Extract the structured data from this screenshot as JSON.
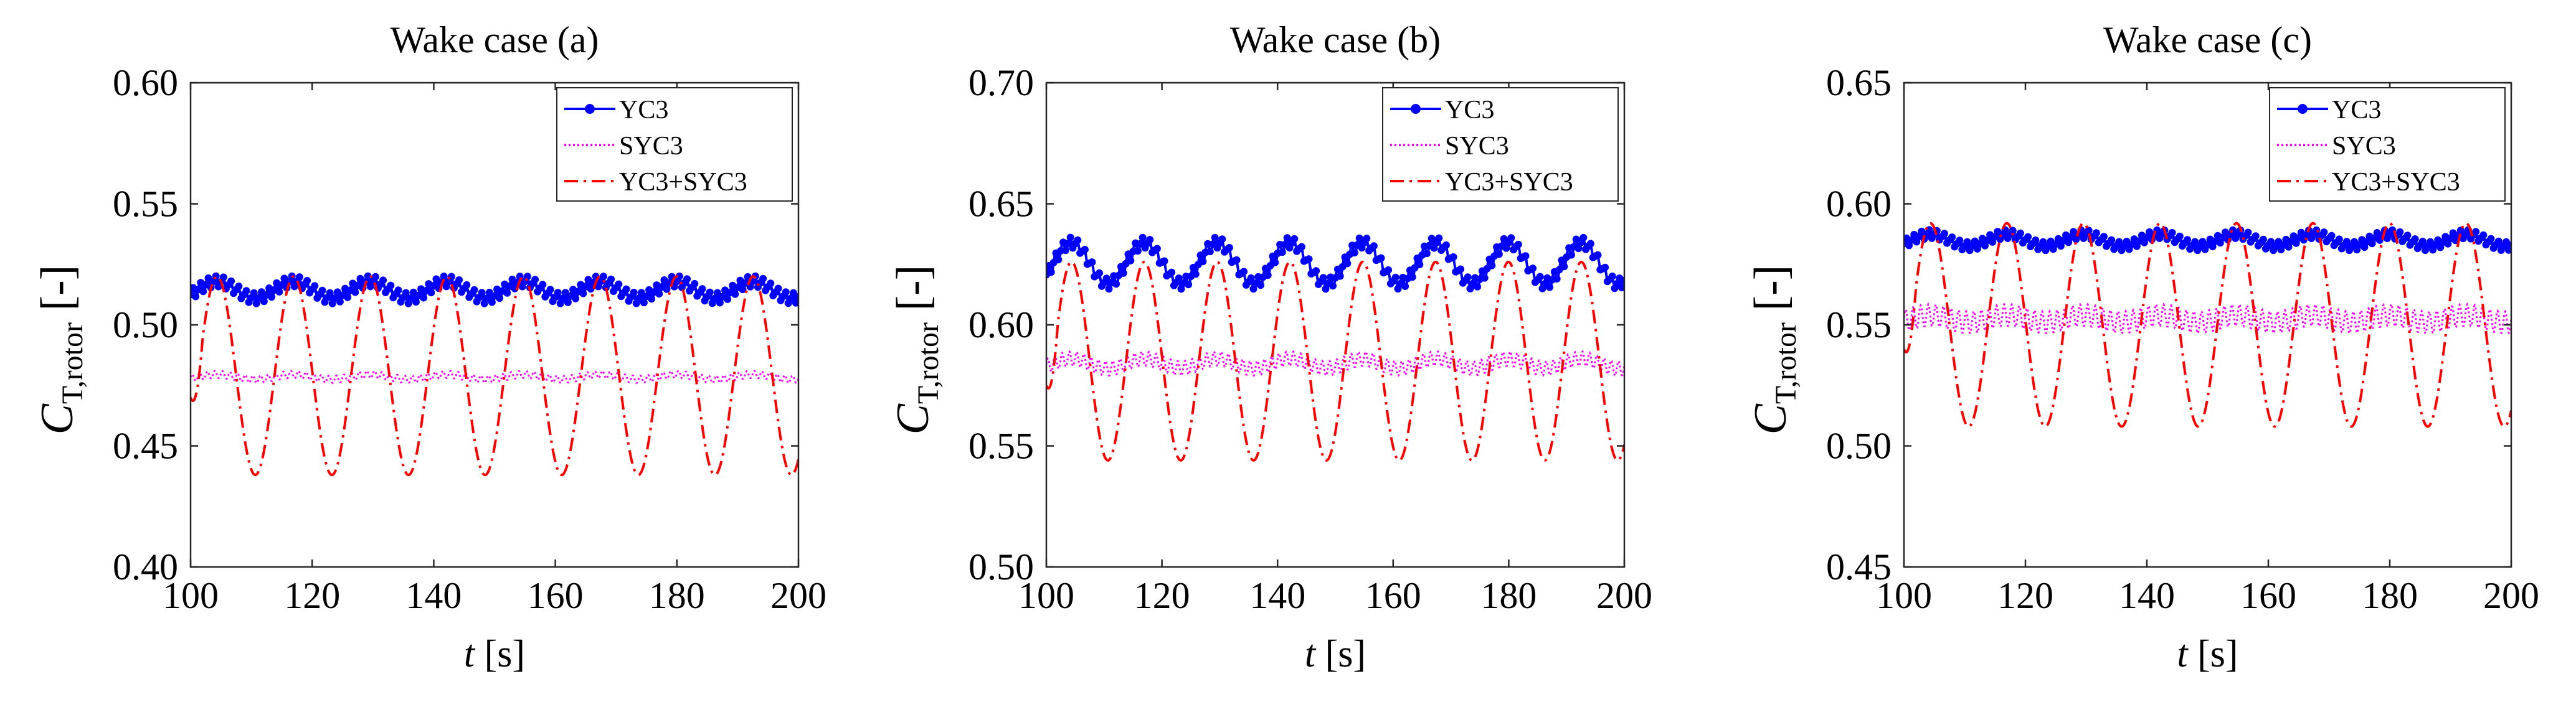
{
  "chart_data": [
    {
      "type": "line",
      "title": "Wake case (a)",
      "xlabel": "t [s]",
      "ylabel": "C_T,rotor [-]",
      "xlim": [
        100,
        200
      ],
      "ylim": [
        0.4,
        0.6
      ],
      "xticks": [
        "100",
        "120",
        "140",
        "160",
        "180",
        "200"
      ],
      "yticks": [
        "0.40",
        "0.45",
        "0.50",
        "0.55",
        "0.60"
      ],
      "legend_position": "top-right",
      "series": [
        {
          "name": "YC3",
          "color": "#0000ff",
          "style": "solid-dots",
          "mean": 0.5145,
          "amplitude": 0.0035,
          "period": 12.6,
          "ripple": 0.0025,
          "ripple_period": 1.25
        },
        {
          "name": "SYC3",
          "color": "#ff00ff",
          "style": "dotted",
          "mean": 0.4785,
          "amplitude": 0.001,
          "period": 12.6,
          "ripple": 0.0015,
          "ripple_period": 1.25
        },
        {
          "name": "YC3+SYC3",
          "color": "#ff0000",
          "style": "dash-dot",
          "mean": 0.479,
          "amplitude": 0.041,
          "period": 12.6,
          "ripple": 0.0,
          "ripple_period": 1.25,
          "x_start_value": 0.47
        }
      ]
    },
    {
      "type": "line",
      "title": "Wake case (b)",
      "xlabel": "t [s]",
      "ylabel": "C_T,rotor [-]",
      "xlim": [
        100,
        200
      ],
      "ylim": [
        0.5,
        0.7
      ],
      "xticks": [
        "100",
        "120",
        "140",
        "160",
        "180",
        "200"
      ],
      "yticks": [
        "0.50",
        "0.55",
        "0.60",
        "0.65",
        "0.70"
      ],
      "legend_position": "top-right",
      "series": [
        {
          "name": "YC3",
          "color": "#0000ff",
          "style": "solid-dots",
          "mean": 0.6255,
          "amplitude": 0.0085,
          "period": 12.6,
          "ripple": 0.0025,
          "ripple_period": 1.25
        },
        {
          "name": "SYC3",
          "color": "#ff00ff",
          "style": "dotted",
          "mean": 0.584,
          "amplitude": 0.002,
          "period": 12.6,
          "ripple": 0.003,
          "ripple_period": 1.25
        },
        {
          "name": "YC3+SYC3",
          "color": "#ff0000",
          "style": "dash-dot",
          "mean": 0.585,
          "amplitude": 0.041,
          "period": 12.6,
          "ripple": 0.0,
          "ripple_period": 1.25,
          "x_start_value": 0.575
        }
      ]
    },
    {
      "type": "line",
      "title": "Wake case (c)",
      "xlabel": "t [s]",
      "ylabel": "C_T,rotor [-]",
      "xlim": [
        100,
        200
      ],
      "ylim": [
        0.45,
        0.65
      ],
      "xticks": [
        "100",
        "120",
        "140",
        "160",
        "180",
        "200"
      ],
      "yticks": [
        "0.45",
        "0.50",
        "0.55",
        "0.60",
        "0.65"
      ],
      "legend_position": "top-right",
      "series": [
        {
          "name": "YC3",
          "color": "#0000ff",
          "style": "solid-dots",
          "mean": 0.585,
          "amplitude": 0.0025,
          "period": 12.6,
          "ripple": 0.002,
          "ripple_period": 1.25
        },
        {
          "name": "SYC3",
          "color": "#ff00ff",
          "style": "dotted",
          "mean": 0.5525,
          "amplitude": 0.0015,
          "period": 12.6,
          "ripple": 0.0045,
          "ripple_period": 1.25
        },
        {
          "name": "YC3+SYC3",
          "color": "#ff0000",
          "style": "dash-dot",
          "mean": 0.55,
          "amplitude": 0.042,
          "period": 12.6,
          "ripple": 0.0,
          "ripple_period": 1.25,
          "x_start_value": 0.54
        }
      ]
    }
  ]
}
